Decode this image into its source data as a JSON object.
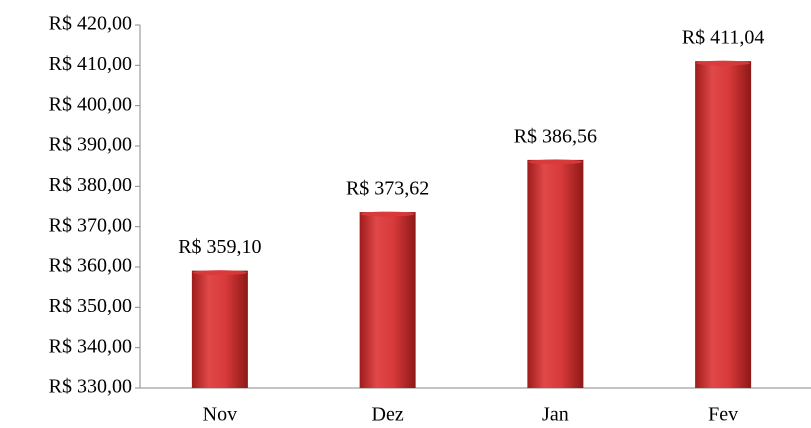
{
  "chart_data": {
    "type": "bar",
    "categories": [
      "Nov",
      "Dez",
      "Jan",
      "Fev"
    ],
    "values": [
      359.1,
      373.62,
      386.56,
      411.04
    ],
    "value_labels": [
      "R$ 359,10",
      "R$ 373,62",
      "R$ 386,56",
      "R$ 411,04"
    ],
    "color": "#d93a3a",
    "ylim": [
      330,
      420
    ],
    "yticks": [
      {
        "value": 330,
        "label": "R$ 330,00"
      },
      {
        "value": 340,
        "label": "R$ 340,00"
      },
      {
        "value": 350,
        "label": "R$ 350,00"
      },
      {
        "value": 360,
        "label": "R$ 360,00"
      },
      {
        "value": 370,
        "label": "R$ 370,00"
      },
      {
        "value": 380,
        "label": "R$ 380,00"
      },
      {
        "value": 390,
        "label": "R$ 390,00"
      },
      {
        "value": 400,
        "label": "R$ 400,00"
      },
      {
        "value": 410,
        "label": "R$ 410,00"
      },
      {
        "value": 420,
        "label": "R$ 420,00"
      }
    ],
    "grid": false
  }
}
